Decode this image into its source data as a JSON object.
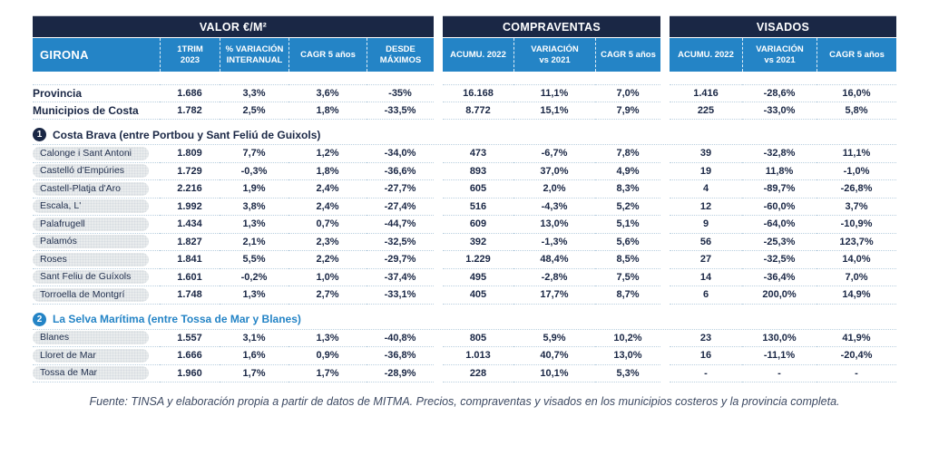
{
  "colors": {
    "navy": "#1a2745",
    "blue": "#2484c6",
    "pill_background": "#e9eced",
    "dotted_line": "#b9cfdf",
    "footer_text": "#3d4a63"
  },
  "label_header": "GIRONA",
  "groups": [
    {
      "title": "VALOR €/M²",
      "columns": [
        "1TRIM\n2023",
        "% VARIACIÓN\nINTERANUAL",
        "CAGR 5 años",
        "DESDE\nMÁXIMOS"
      ]
    },
    {
      "title": "COMPRAVENTAS",
      "columns": [
        "ACUMU. 2022",
        "VARIACIÓN\nvs 2021",
        "CAGR 5 años"
      ]
    },
    {
      "title": "VISADOS",
      "columns": [
        "ACUMU. 2022",
        "VARIACIÓN\nvs 2021",
        "CAGR 5 años"
      ]
    }
  ],
  "summary_rows": [
    {
      "label": "Provincia",
      "valor": [
        "1.686",
        "3,3%",
        "3,6%",
        "-35%"
      ],
      "compraventas": [
        "16.168",
        "11,1%",
        "7,0%"
      ],
      "visados": [
        "1.416",
        "-28,6%",
        "16,0%"
      ]
    },
    {
      "label": "Municipios de Costa",
      "valor": [
        "1.782",
        "2,5%",
        "1,8%",
        "-33,5%"
      ],
      "compraventas": [
        "8.772",
        "15,1%",
        "7,9%"
      ],
      "visados": [
        "225",
        "-33,0%",
        "5,8%"
      ]
    }
  ],
  "sections": [
    {
      "number": "1",
      "title": "Costa Brava (entre Portbou y Sant Feliú de Guixols)",
      "color": "#1a2745",
      "rows": [
        {
          "label": "Calonge i Sant Antoni",
          "valor": [
            "1.809",
            "7,7%",
            "1,2%",
            "-34,0%"
          ],
          "compraventas": [
            "473",
            "-6,7%",
            "7,8%"
          ],
          "visados": [
            "39",
            "-32,8%",
            "11,1%"
          ]
        },
        {
          "label": "Castelló d'Empúries",
          "valor": [
            "1.729",
            "-0,3%",
            "1,8%",
            "-36,6%"
          ],
          "compraventas": [
            "893",
            "37,0%",
            "4,9%"
          ],
          "visados": [
            "19",
            "11,8%",
            "-1,0%"
          ]
        },
        {
          "label": "Castell-Platja d'Aro",
          "valor": [
            "2.216",
            "1,9%",
            "2,4%",
            "-27,7%"
          ],
          "compraventas": [
            "605",
            "2,0%",
            "8,3%"
          ],
          "visados": [
            "4",
            "-89,7%",
            "-26,8%"
          ]
        },
        {
          "label": "Escala, L'",
          "valor": [
            "1.992",
            "3,8%",
            "2,4%",
            "-27,4%"
          ],
          "compraventas": [
            "516",
            "-4,3%",
            "5,2%"
          ],
          "visados": [
            "12",
            "-60,0%",
            "3,7%"
          ]
        },
        {
          "label": "Palafrugell",
          "valor": [
            "1.434",
            "1,3%",
            "0,7%",
            "-44,7%"
          ],
          "compraventas": [
            "609",
            "13,0%",
            "5,1%"
          ],
          "visados": [
            "9",
            "-64,0%",
            "-10,9%"
          ]
        },
        {
          "label": "Palamós",
          "valor": [
            "1.827",
            "2,1%",
            "2,3%",
            "-32,5%"
          ],
          "compraventas": [
            "392",
            "-1,3%",
            "5,6%"
          ],
          "visados": [
            "56",
            "-25,3%",
            "123,7%"
          ]
        },
        {
          "label": "Roses",
          "valor": [
            "1.841",
            "5,5%",
            "2,2%",
            "-29,7%"
          ],
          "compraventas": [
            "1.229",
            "48,4%",
            "8,5%"
          ],
          "visados": [
            "27",
            "-32,5%",
            "14,0%"
          ]
        },
        {
          "label": "Sant Feliu de Guíxols",
          "valor": [
            "1.601",
            "-0,2%",
            "1,0%",
            "-37,4%"
          ],
          "compraventas": [
            "495",
            "-2,8%",
            "7,5%"
          ],
          "visados": [
            "14",
            "-36,4%",
            "7,0%"
          ]
        },
        {
          "label": "Torroella de Montgrí",
          "valor": [
            "1.748",
            "1,3%",
            "2,7%",
            "-33,1%"
          ],
          "compraventas": [
            "405",
            "17,7%",
            "8,7%"
          ],
          "visados": [
            "6",
            "200,0%",
            "14,9%"
          ]
        }
      ]
    },
    {
      "number": "2",
      "title": "La Selva Marítima (entre Tossa de Mar y Blanes)",
      "color": "#2484c6",
      "rows": [
        {
          "label": "Blanes",
          "valor": [
            "1.557",
            "3,1%",
            "1,3%",
            "-40,8%"
          ],
          "compraventas": [
            "805",
            "5,9%",
            "10,2%"
          ],
          "visados": [
            "23",
            "130,0%",
            "41,9%"
          ]
        },
        {
          "label": "Lloret de Mar",
          "valor": [
            "1.666",
            "1,6%",
            "0,9%",
            "-36,8%"
          ],
          "compraventas": [
            "1.013",
            "40,7%",
            "13,0%"
          ],
          "visados": [
            "16",
            "-11,1%",
            "-20,4%"
          ]
        },
        {
          "label": "Tossa de Mar",
          "valor": [
            "1.960",
            "1,7%",
            "1,7%",
            "-28,9%"
          ],
          "compraventas": [
            "228",
            "10,1%",
            "5,3%"
          ],
          "visados": [
            "-",
            "-",
            "-"
          ]
        }
      ]
    }
  ],
  "footer": "Fuente: TINSA y elaboración propia a partir de datos de MITMA. Precios, compraventas y visados en los municipios costeros y la provincia completa."
}
